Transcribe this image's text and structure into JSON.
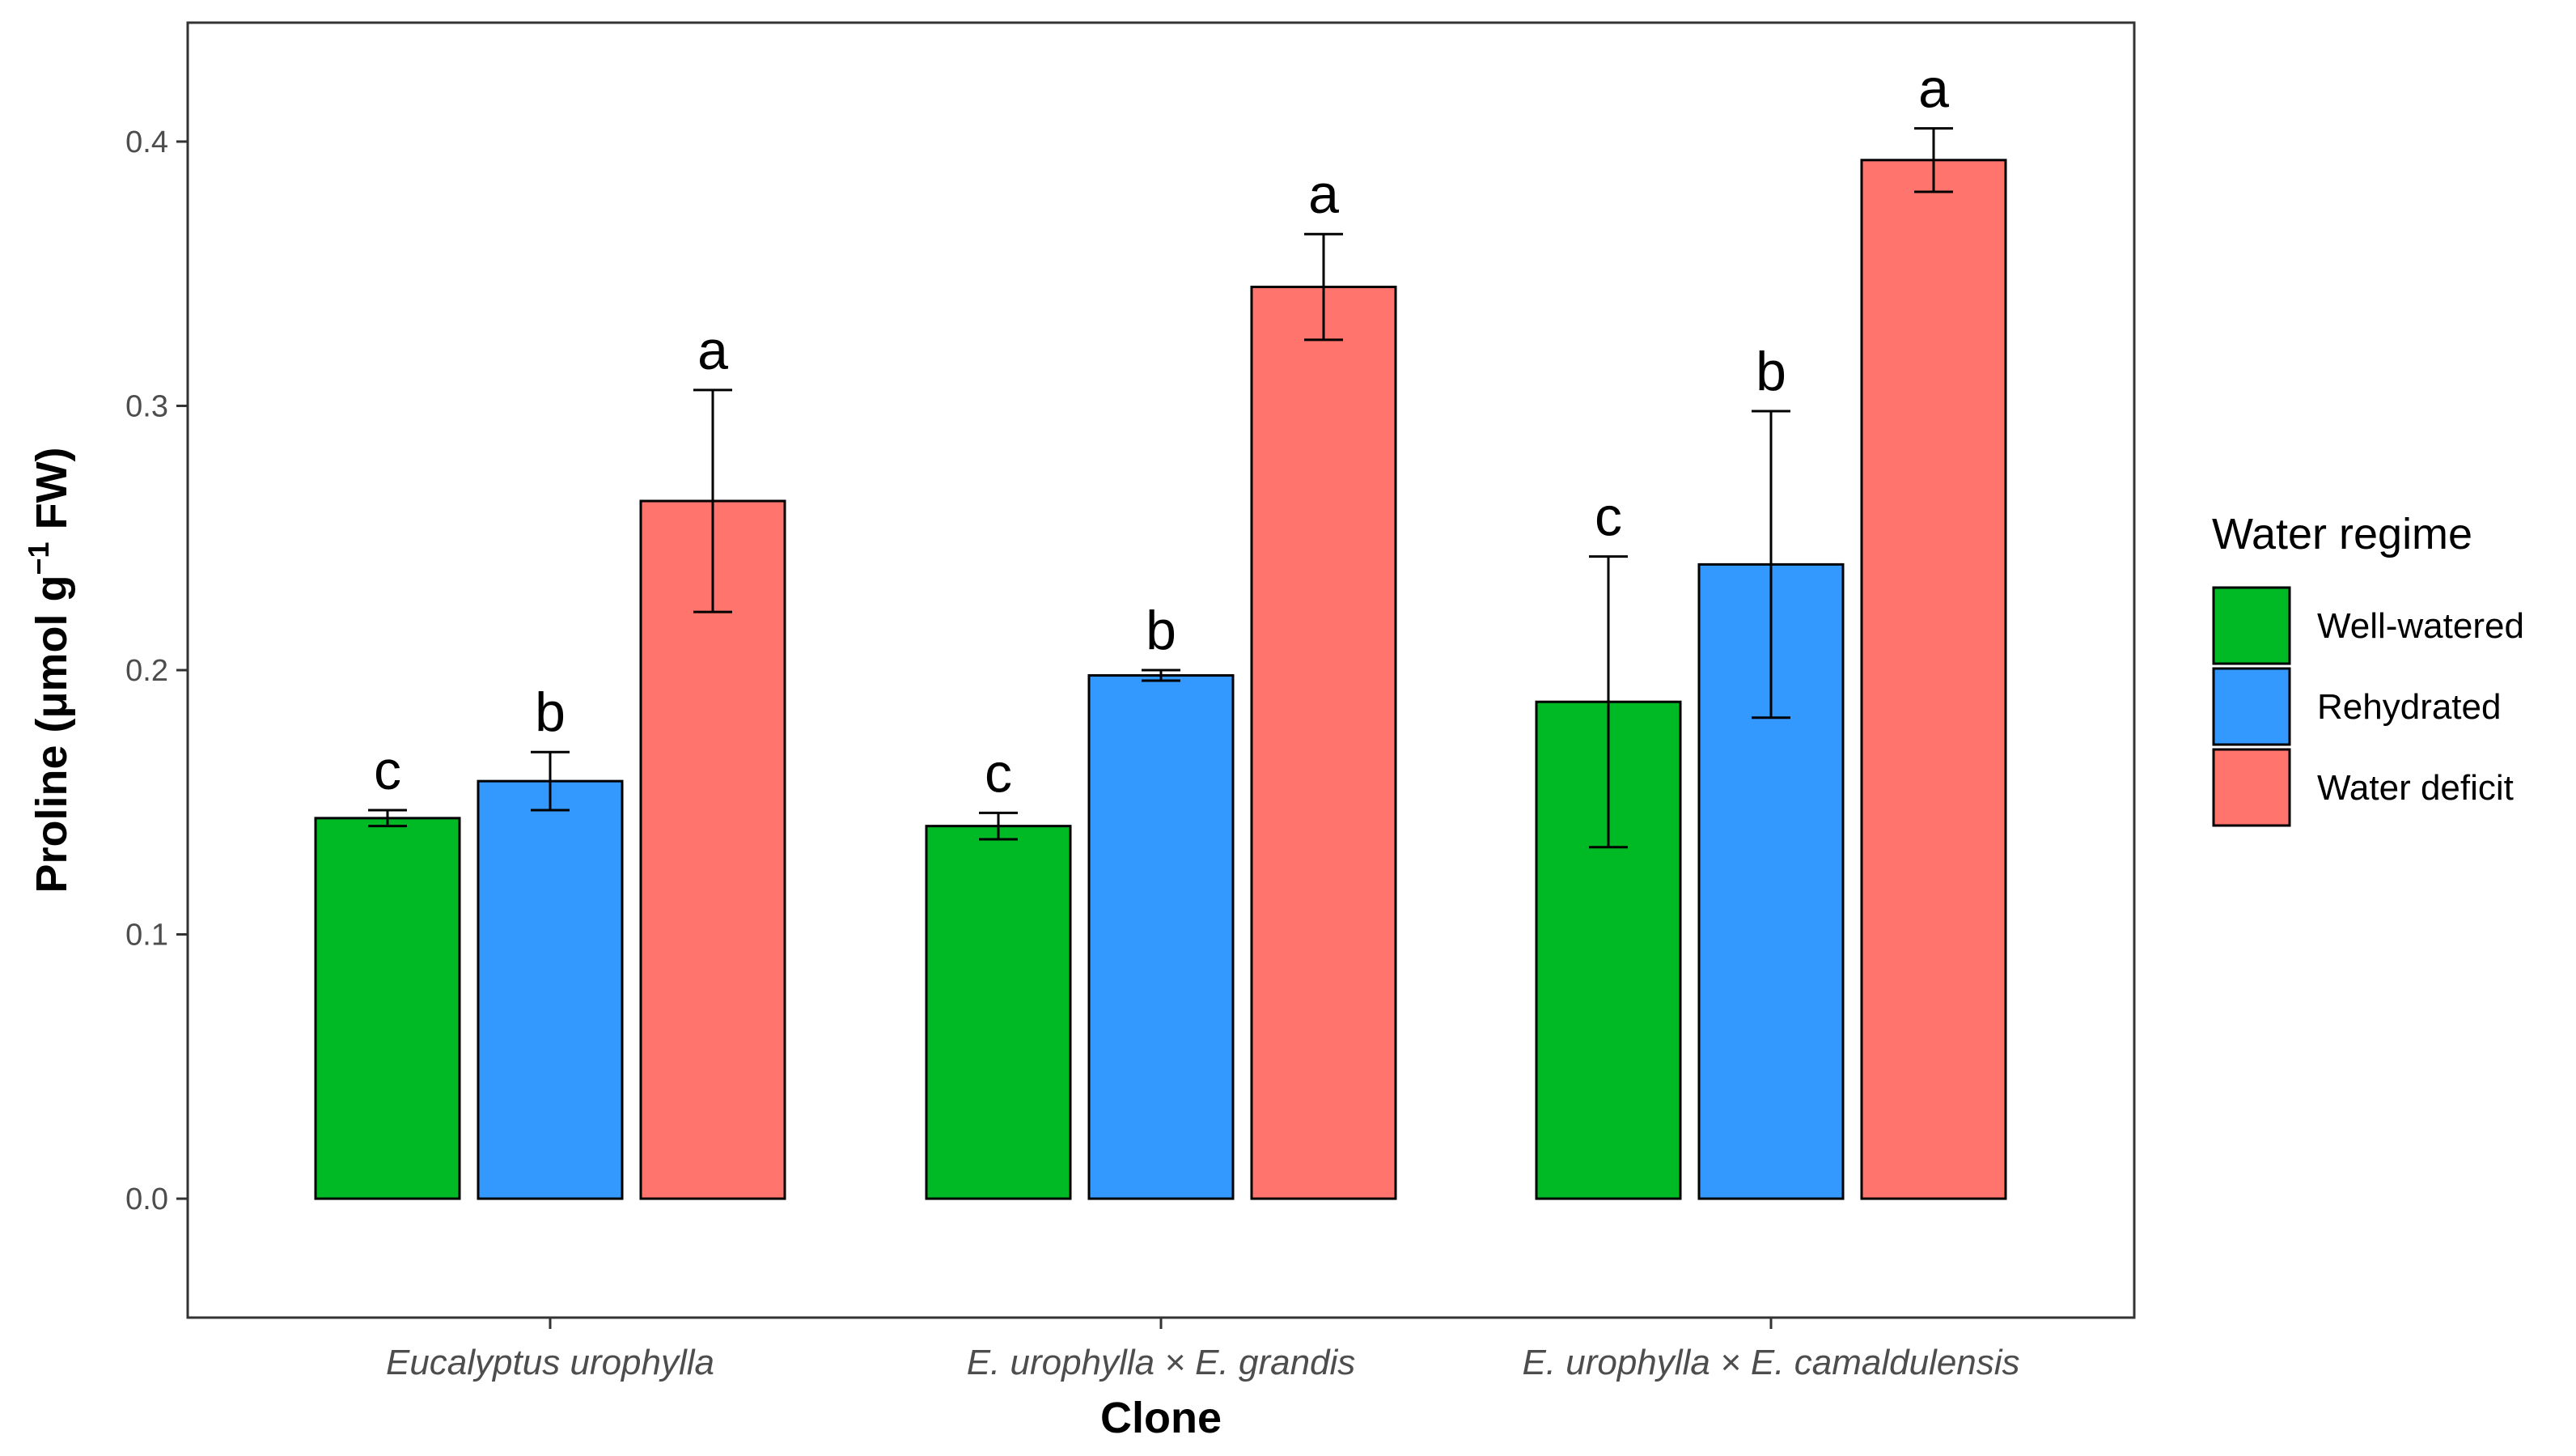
{
  "chart_data": {
    "type": "bar",
    "title": "",
    "xlabel": "Clone",
    "ylabel": {
      "main": "Proline (μmol g",
      "superscript": "−1",
      "tail": " FW)"
    },
    "categories": [
      "Eucalyptus urophylla",
      "E. urophylla × E. grandis",
      "E. urophylla × E. camaldulensis"
    ],
    "ylim": [
      -0.045,
      0.445
    ],
    "yticks": [
      0.0,
      0.1,
      0.2,
      0.3,
      0.4
    ],
    "ytick_labels": [
      "0.0",
      "0.1",
      "0.2",
      "0.3",
      "0.4"
    ],
    "legend": {
      "title": "Water regime",
      "position": "right"
    },
    "series": [
      {
        "name": "Well-watered",
        "color": "#00BA25",
        "values": [
          0.144,
          0.141,
          0.188
        ],
        "errors": [
          0.003,
          0.005,
          0.055
        ],
        "letters": [
          "c",
          "c",
          "c"
        ]
      },
      {
        "name": "Rehydrated",
        "color": "#3399FF",
        "values": [
          0.158,
          0.198,
          0.24
        ],
        "errors": [
          0.011,
          0.002,
          0.058
        ],
        "letters": [
          "b",
          "b",
          "b"
        ]
      },
      {
        "name": "Water deficit",
        "color": "#FF746C",
        "values": [
          0.264,
          0.345,
          0.393
        ],
        "errors": [
          0.042,
          0.02,
          0.012
        ],
        "letters": [
          "a",
          "a",
          "a"
        ]
      }
    ]
  }
}
